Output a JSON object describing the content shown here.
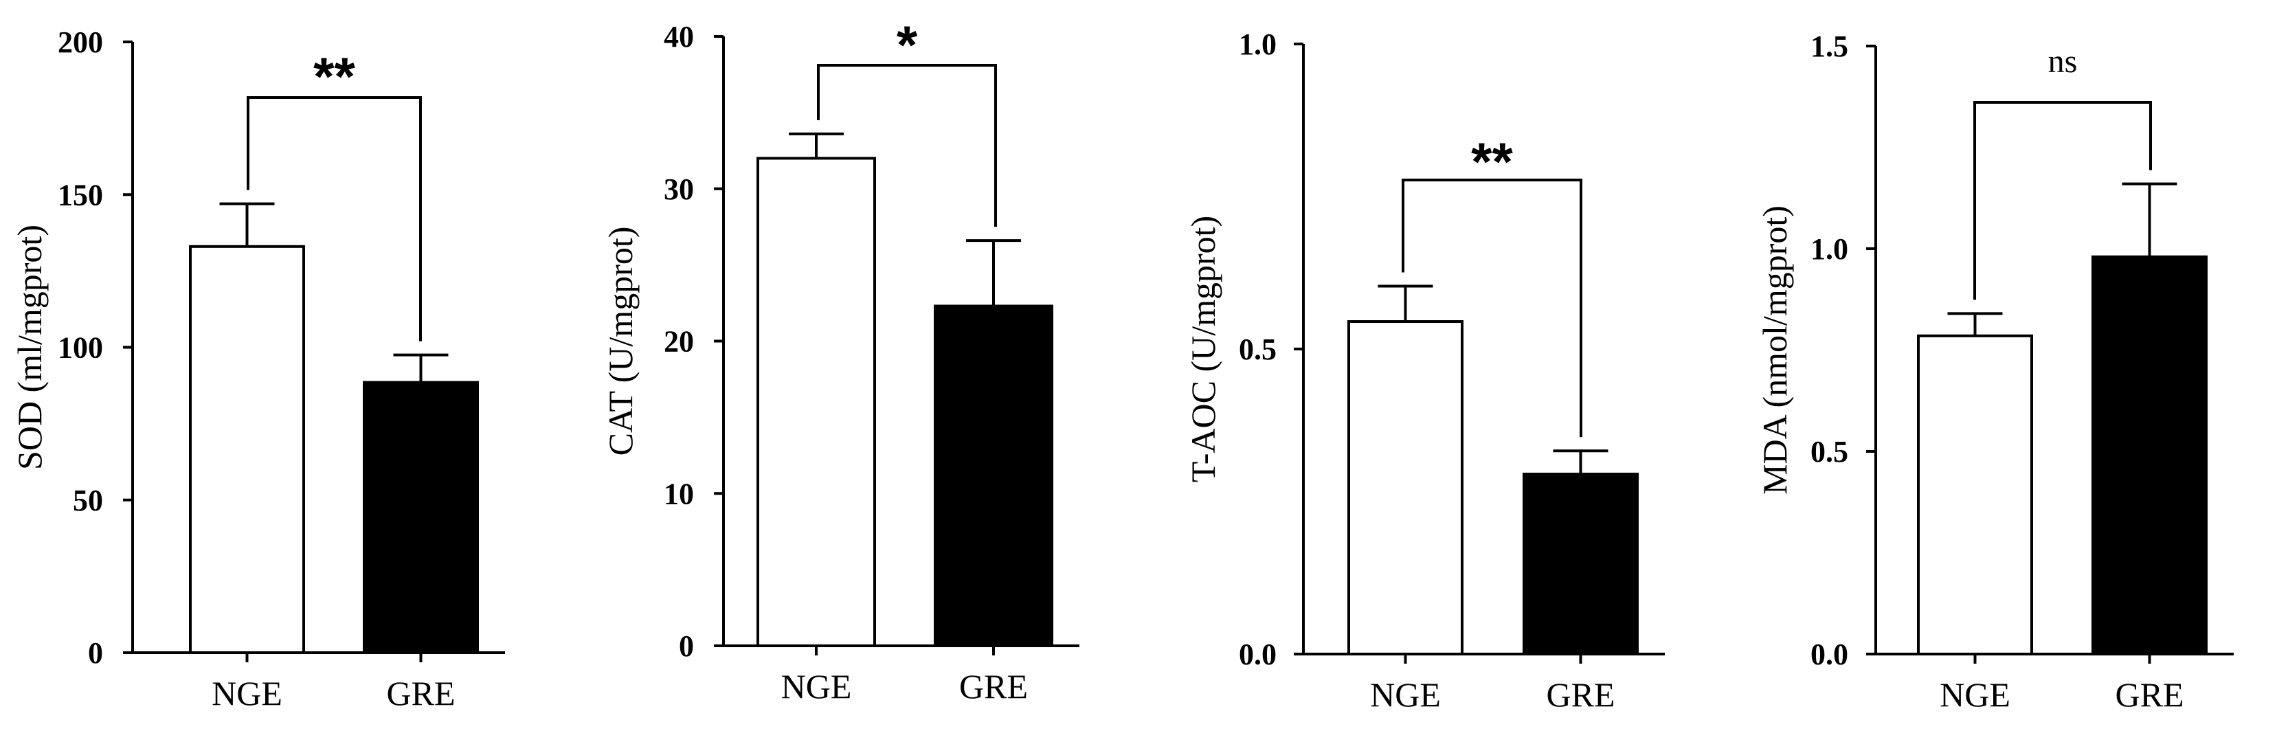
{
  "figure": {
    "background": "#ffffff",
    "ink_color": "#000000"
  },
  "chart_data": [
    {
      "type": "bar",
      "title": "",
      "xlabel": "",
      "ylabel": "SOD (ml/mgprot)",
      "ylim": [
        0,
        200
      ],
      "yticks": [
        0,
        50,
        100,
        150,
        200
      ],
      "ytick_labels": [
        "0",
        "50",
        "100",
        "150",
        "200"
      ],
      "categories": [
        "NGE",
        "GRE"
      ],
      "values": [
        133,
        88.5
      ],
      "errors": [
        14,
        9
      ],
      "bar_fills": [
        "#ffffff",
        "#000000"
      ],
      "significance": {
        "label": "**",
        "between": [
          "NGE",
          "GRE"
        ]
      }
    },
    {
      "type": "bar",
      "title": "",
      "xlabel": "",
      "ylabel": "CAT (U/mgprot)",
      "ylim": [
        0,
        40
      ],
      "yticks": [
        0,
        10,
        20,
        30,
        40
      ],
      "ytick_labels": [
        "0",
        "10",
        "20",
        "30",
        "40"
      ],
      "categories": [
        "NGE",
        "GRE"
      ],
      "values": [
        32,
        22.3
      ],
      "errors": [
        1.6,
        4.3
      ],
      "bar_fills": [
        "#ffffff",
        "#000000"
      ],
      "significance": {
        "label": "*",
        "between": [
          "NGE",
          "GRE"
        ]
      }
    },
    {
      "type": "bar",
      "title": "",
      "xlabel": "",
      "ylabel": "T-AOC (U/mgprot)",
      "ylim": [
        0,
        1.0
      ],
      "yticks": [
        0,
        0.5,
        1.0
      ],
      "ytick_labels": [
        "0.0",
        "0.5",
        "1.0"
      ],
      "categories": [
        "NGE",
        "GRE"
      ],
      "values": [
        0.545,
        0.295
      ],
      "errors": [
        0.058,
        0.038
      ],
      "bar_fills": [
        "#ffffff",
        "#000000"
      ],
      "significance": {
        "label": "**",
        "between": [
          "NGE",
          "GRE"
        ]
      }
    },
    {
      "type": "bar",
      "title": "",
      "xlabel": "",
      "ylabel": "MDA (nmol/mgprot)",
      "ylim": [
        0,
        1.5
      ],
      "yticks": [
        0,
        0.5,
        1.0,
        1.5
      ],
      "ytick_labels": [
        "0.0",
        "0.5",
        "1.0",
        "1.5"
      ],
      "categories": [
        "NGE",
        "GRE"
      ],
      "values": [
        0.785,
        0.98
      ],
      "errors": [
        0.055,
        0.18
      ],
      "bar_fills": [
        "#ffffff",
        "#000000"
      ],
      "significance": {
        "label": "ns",
        "between": [
          "NGE",
          "GRE"
        ]
      }
    }
  ]
}
